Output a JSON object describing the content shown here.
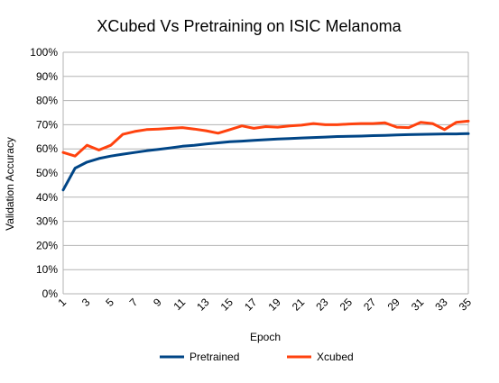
{
  "chart_data": {
    "type": "line",
    "title": "XCubed Vs Pretraining on ISIC Melanoma",
    "xlabel": "Epoch",
    "ylabel": "Validation Accuracy",
    "x": [
      1,
      2,
      3,
      4,
      5,
      6,
      7,
      8,
      9,
      10,
      11,
      12,
      13,
      14,
      15,
      16,
      17,
      18,
      19,
      20,
      21,
      22,
      23,
      24,
      25,
      26,
      27,
      28,
      29,
      30,
      31,
      32,
      33,
      34,
      35
    ],
    "x_tick_labels": [
      "1",
      "3",
      "5",
      "7",
      "9",
      "11",
      "13",
      "15",
      "17",
      "19",
      "21",
      "23",
      "25",
      "27",
      "29",
      "31",
      "33",
      "35"
    ],
    "y_tick_labels": [
      "0%",
      "10%",
      "20%",
      "30%",
      "40%",
      "50%",
      "60%",
      "70%",
      "80%",
      "90%",
      "100%"
    ],
    "ylim": [
      0,
      1
    ],
    "grid": true,
    "legend_position": "bottom",
    "series": [
      {
        "name": "Pretrained",
        "color": "#004586",
        "values": [
          0.43,
          0.52,
          0.545,
          0.56,
          0.57,
          0.578,
          0.585,
          0.592,
          0.598,
          0.604,
          0.611,
          0.615,
          0.62,
          0.625,
          0.63,
          0.632,
          0.635,
          0.638,
          0.641,
          0.643,
          0.645,
          0.647,
          0.649,
          0.651,
          0.652,
          0.653,
          0.655,
          0.656,
          0.658,
          0.659,
          0.66,
          0.661,
          0.662,
          0.662,
          0.663
        ]
      },
      {
        "name": "Xcubed",
        "color": "#FF420E",
        "values": [
          0.585,
          0.57,
          0.615,
          0.595,
          0.615,
          0.66,
          0.672,
          0.68,
          0.682,
          0.685,
          0.688,
          0.682,
          0.675,
          0.665,
          0.68,
          0.695,
          0.685,
          0.692,
          0.69,
          0.695,
          0.698,
          0.705,
          0.7,
          0.7,
          0.703,
          0.705,
          0.705,
          0.708,
          0.69,
          0.688,
          0.71,
          0.705,
          0.68,
          0.71,
          0.715
        ]
      }
    ]
  }
}
